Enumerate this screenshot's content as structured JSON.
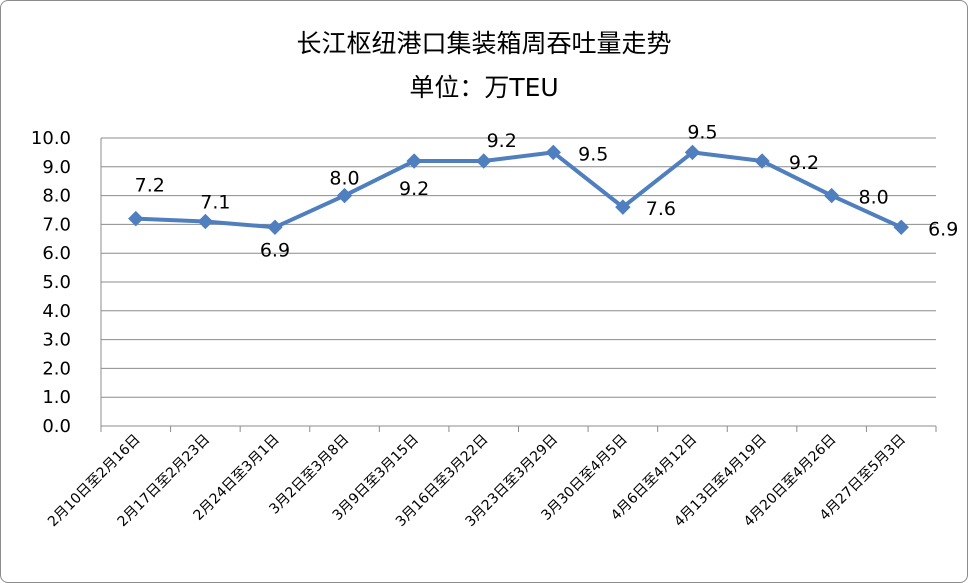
{
  "chart_data": {
    "type": "line",
    "title": "长江枢纽港口集装箱周吞吐量走势",
    "subtitle": "单位：万TEU",
    "categories": [
      "2月10日至2月16日",
      "2月17日至2月23日",
      "2月24日至3月1日",
      "3月2日至3月8日",
      "3月9日至3月15日",
      "3月16日至3月22日",
      "3月23日至3月29日",
      "3月30日至4月5日",
      "4月6日至4月12日",
      "4月13日至4月19日",
      "4月20日至4月26日",
      "4月27日至5月3日"
    ],
    "values": [
      7.2,
      7.1,
      6.9,
      8.0,
      9.2,
      9.2,
      9.5,
      7.6,
      9.5,
      9.2,
      8.0,
      6.9
    ],
    "data_labels": [
      "7.2",
      "7.1",
      "6.9",
      "8.0",
      "9.2",
      "9.2",
      "9.5",
      "7.6",
      "9.5",
      "9.2",
      "8.0",
      "6.9"
    ],
    "yticks": [
      "0.0",
      "1.0",
      "2.0",
      "3.0",
      "4.0",
      "5.0",
      "6.0",
      "7.0",
      "8.0",
      "9.0",
      "10.0"
    ],
    "ylim": [
      0,
      10
    ],
    "grid": true,
    "legend": "none",
    "line_color": "#4f7fbe",
    "marker": "diamond"
  }
}
